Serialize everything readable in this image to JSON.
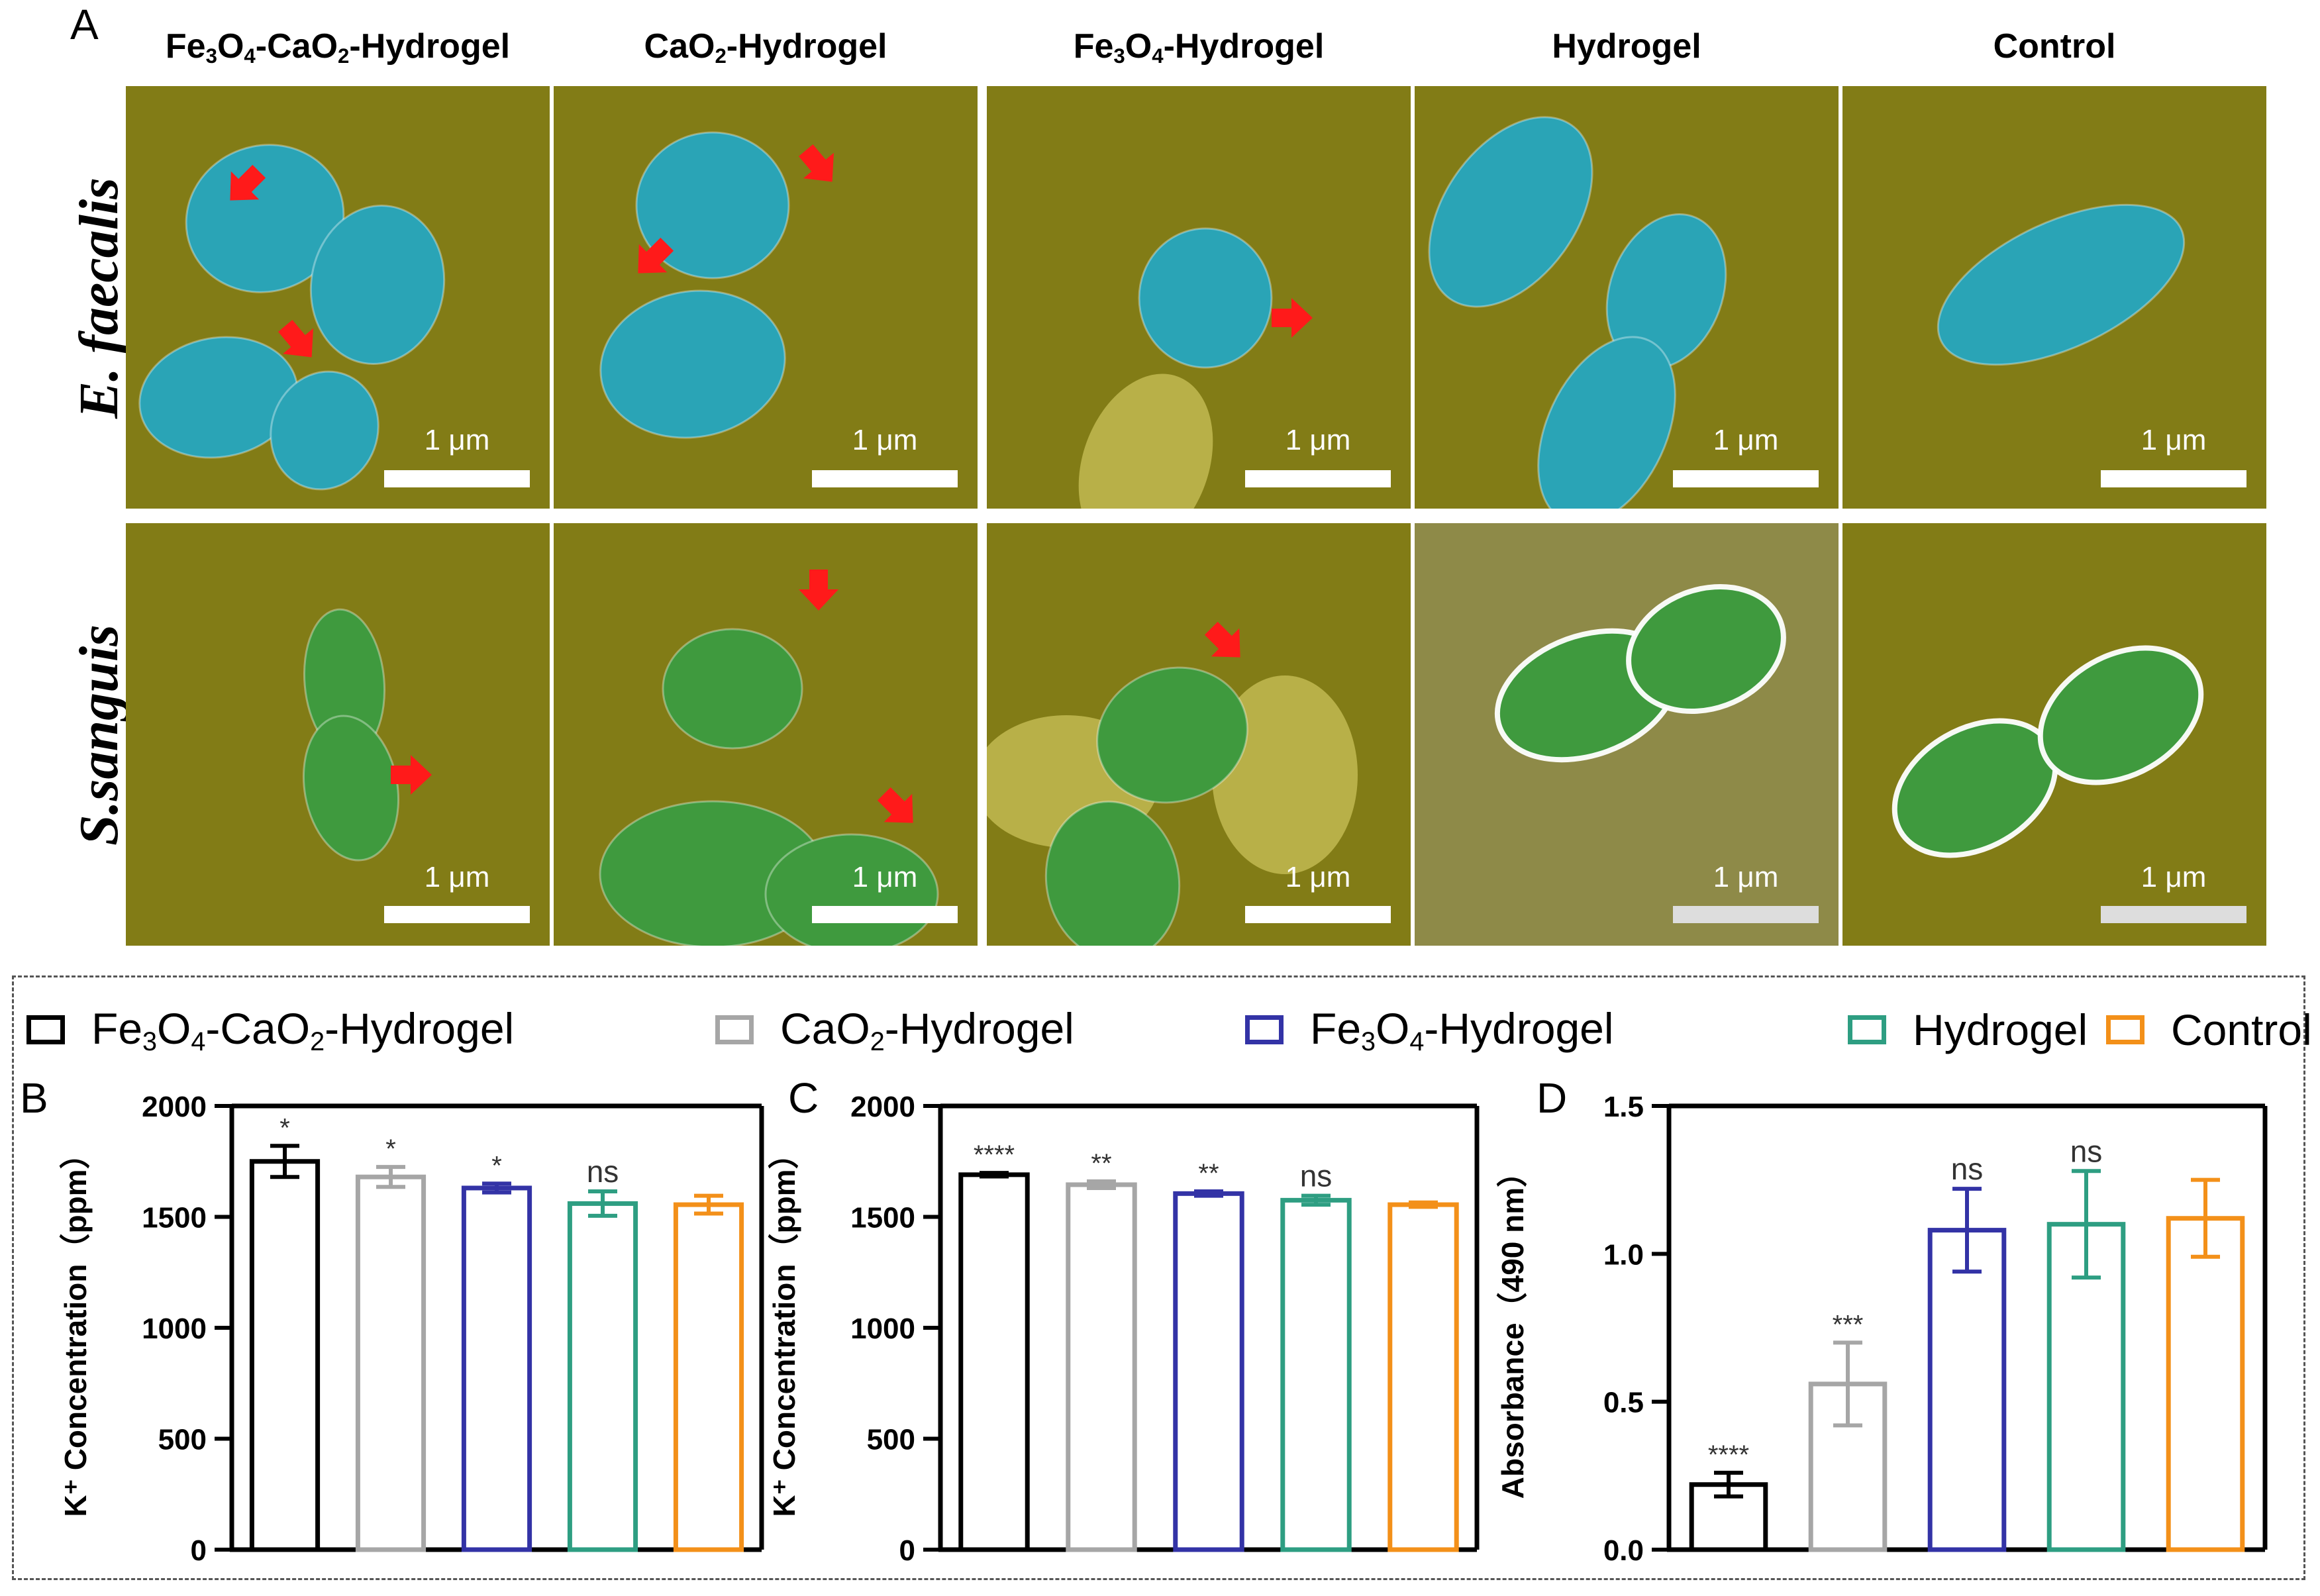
{
  "panel_a": {
    "letter": "A",
    "columns": [
      {
        "pre": "Fe",
        "s1": "3",
        "mid": "O",
        "s2": "4",
        "post": "-CaO",
        "s3": "2",
        "tail": "-Hydrogel"
      },
      {
        "pre": "CaO",
        "s1": "2",
        "mid": "-Hydrogel",
        "s2": "",
        "post": "",
        "s3": "",
        "tail": ""
      },
      {
        "pre": "Fe",
        "s1": "3",
        "mid": "O",
        "s2": "4",
        "post": "-Hydrogel",
        "s3": "",
        "tail": ""
      },
      {
        "pre": "Hydrogel",
        "s1": "",
        "mid": "",
        "s2": "",
        "post": "",
        "s3": "",
        "tail": ""
      },
      {
        "pre": "Control",
        "s1": "",
        "mid": "",
        "s2": "",
        "post": "",
        "s3": "",
        "tail": ""
      }
    ],
    "rows": [
      "E. faecalis",
      "S.sanguis"
    ],
    "scale_label": "1 μm",
    "colors": {
      "background": "#827c16",
      "bacteria_row1": "#2aa4b6",
      "bacteria_row2": "#3f9a3e",
      "arrow": "#ff1a1a"
    }
  },
  "legend": [
    {
      "pre": "Fe",
      "s1": "3",
      "mid": "O",
      "s2": "4",
      "post": "-CaO",
      "s3": "2",
      "tail": "-Hydrogel",
      "color": "#000000"
    },
    {
      "pre": "CaO",
      "s1": "2",
      "mid": "-Hydrogel",
      "s2": "",
      "post": "",
      "s3": "",
      "tail": "",
      "color": "#a6a6a6"
    },
    {
      "pre": "Fe",
      "s1": "3",
      "mid": "O",
      "s2": "4",
      "post": "-Hydrogel",
      "s3": "",
      "tail": "",
      "color": "#3333a6"
    },
    {
      "pre": "Hydrogel",
      "s1": "",
      "mid": "",
      "s2": "",
      "post": "",
      "s3": "",
      "tail": "",
      "color": "#2e9e82"
    },
    {
      "pre": "Control",
      "s1": "",
      "mid": "",
      "s2": "",
      "post": "",
      "s3": "",
      "tail": "",
      "color": "#f39019"
    }
  ],
  "chart_data": [
    {
      "panel": "B",
      "type": "bar",
      "categories": [
        "Fe3O4-CaO2-Hydrogel",
        "CaO2-Hydrogel",
        "Fe3O4-Hydrogel",
        "Hydrogel",
        "Control"
      ],
      "values": [
        1750,
        1680,
        1630,
        1560,
        1555
      ],
      "errors": [
        70,
        45,
        20,
        55,
        40
      ],
      "significance": [
        "*",
        "*",
        "*",
        "ns",
        ""
      ],
      "ylabel": "K⁺ Concentration（ppm）",
      "ylim": [
        0,
        2000
      ],
      "yticks": [
        "0",
        "500",
        "1000",
        "1500",
        "2000"
      ]
    },
    {
      "panel": "C",
      "type": "bar",
      "categories": [
        "Fe3O4-CaO2-Hydrogel",
        "CaO2-Hydrogel",
        "Fe3O4-Hydrogel",
        "Hydrogel",
        "Control"
      ],
      "values": [
        1690,
        1645,
        1605,
        1575,
        1555
      ],
      "errors": [
        8,
        15,
        10,
        20,
        10
      ],
      "significance": [
        "****",
        "**",
        "**",
        "ns",
        ""
      ],
      "ylabel": "K⁺ Concentration（ppm）",
      "ylim": [
        0,
        2000
      ],
      "yticks": [
        "0",
        "500",
        "1000",
        "1500",
        "2000"
      ]
    },
    {
      "panel": "D",
      "type": "bar",
      "categories": [
        "Fe3O4-CaO2-Hydrogel",
        "CaO2-Hydrogel",
        "Fe3O4-Hydrogel",
        "Hydrogel",
        "Control"
      ],
      "values": [
        0.22,
        0.56,
        1.08,
        1.1,
        1.12
      ],
      "errors": [
        0.04,
        0.14,
        0.14,
        0.18,
        0.13
      ],
      "significance": [
        "****",
        "***",
        "ns",
        "ns",
        ""
      ],
      "ylabel": "Absorbance（490 nm）",
      "ylim": [
        0,
        1.5
      ],
      "yticks": [
        "0.0",
        "0.5",
        "1.0",
        "1.5"
      ]
    }
  ]
}
